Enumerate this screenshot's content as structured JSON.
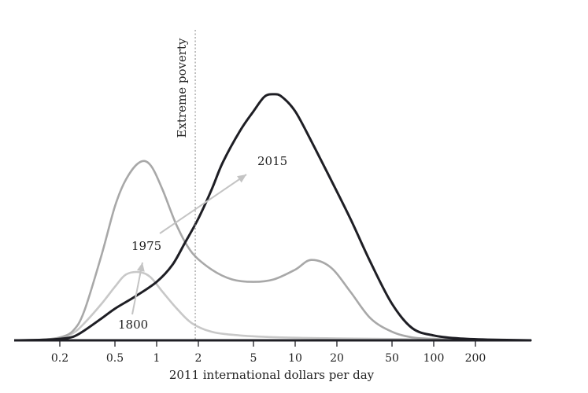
{
  "chart_data": {
    "type": "area",
    "xlabel": "2011 international dollars per day",
    "ylabel": "",
    "xscale": "log",
    "xlim": [
      0.1,
      500
    ],
    "ylim": [
      0,
      1.1
    ],
    "x_ticks": [
      0.2,
      0.5,
      1,
      2,
      5,
      10,
      20,
      50,
      100,
      200
    ],
    "x_tick_labels": [
      "0.2",
      "0.5",
      "1",
      "2",
      "5",
      "10",
      "20",
      "50",
      "100",
      "200"
    ],
    "annotation": {
      "label": "Extreme poverty",
      "x": 1.9
    },
    "series": [
      {
        "name": "1800",
        "color": "#c8c8c8",
        "x": [
          0.1,
          0.15,
          0.2,
          0.25,
          0.3,
          0.4,
          0.5,
          0.6,
          0.75,
          0.9,
          1.1,
          1.4,
          1.8,
          2.5,
          4,
          8,
          20,
          60,
          200,
          500
        ],
        "y": [
          0.0,
          0.003,
          0.01,
          0.03,
          0.07,
          0.15,
          0.22,
          0.27,
          0.28,
          0.26,
          0.2,
          0.13,
          0.07,
          0.035,
          0.02,
          0.012,
          0.008,
          0.005,
          0.002,
          0.0
        ]
      },
      {
        "name": "1975",
        "color": "#a8a8a8",
        "x": [
          0.1,
          0.15,
          0.2,
          0.25,
          0.3,
          0.4,
          0.5,
          0.6,
          0.75,
          0.9,
          1.1,
          1.4,
          1.8,
          2.5,
          3.5,
          5,
          7,
          10,
          13,
          18,
          25,
          35,
          50,
          70,
          100,
          150,
          250,
          500
        ],
        "y": [
          0.0,
          0.003,
          0.012,
          0.04,
          0.12,
          0.35,
          0.55,
          0.66,
          0.73,
          0.72,
          0.62,
          0.47,
          0.36,
          0.29,
          0.25,
          0.24,
          0.25,
          0.29,
          0.33,
          0.3,
          0.2,
          0.09,
          0.035,
          0.012,
          0.006,
          0.003,
          0.001,
          0.0
        ]
      },
      {
        "name": "2015",
        "color": "#1e1e24",
        "x": [
          0.1,
          0.15,
          0.2,
          0.25,
          0.3,
          0.4,
          0.5,
          0.7,
          1,
          1.3,
          1.6,
          2,
          2.5,
          3,
          4,
          5,
          6,
          7,
          8,
          10,
          13,
          17,
          25,
          35,
          50,
          70,
          100,
          150,
          250,
          500
        ],
        "y": [
          0.0,
          0.002,
          0.006,
          0.015,
          0.04,
          0.09,
          0.13,
          0.18,
          0.24,
          0.31,
          0.4,
          0.5,
          0.62,
          0.73,
          0.86,
          0.94,
          1.0,
          1.01,
          1.0,
          0.94,
          0.82,
          0.69,
          0.5,
          0.32,
          0.15,
          0.05,
          0.02,
          0.008,
          0.003,
          0.0
        ]
      }
    ],
    "series_labels": [
      "1800",
      "1975",
      "2015"
    ],
    "arrows": [
      {
        "from_series": "1800",
        "to_series": "1975"
      },
      {
        "from_series": "1975",
        "to_series": "2015"
      }
    ],
    "grid": false,
    "legend": "none"
  }
}
